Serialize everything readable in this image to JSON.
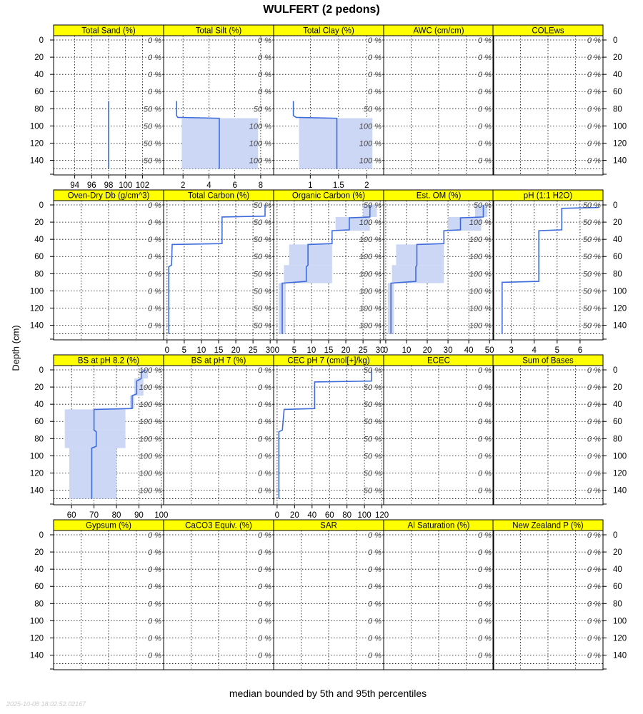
{
  "title": "WULFERT (2 pedons)",
  "ylabel": "Depth (cm)",
  "caption": "median bounded by 5th and 95th percentiles",
  "timestamp": "2025-10-08 18:02:52.02167",
  "colors": {
    "strip": "#ffff00",
    "line": "#3d6bd9",
    "band": "#ccd6f5",
    "frame": "#000000"
  },
  "chart_data": {
    "type": "line",
    "depth_ticks": [
      0,
      20,
      40,
      60,
      80,
      100,
      120,
      140
    ],
    "ylim": [
      -5,
      157
    ],
    "panels": [
      {
        "label": "Total Sand (%)",
        "pct": [
          "0 %",
          "0 %",
          "0 %",
          "0 %",
          "50 %",
          "50 %",
          "50 %",
          "50 %"
        ],
        "xlim": [
          91.5,
          104.5
        ],
        "xticks": [
          94,
          96,
          98,
          100,
          102
        ],
        "median": [
          [
            98,
            71
          ],
          [
            98,
            150
          ]
        ]
      },
      {
        "label": "Total Silt (%)",
        "pct": [
          "0 %",
          "0 %",
          "0 %",
          "0 %",
          "50 %",
          "100 %",
          "100 %",
          "100 %"
        ],
        "xlim": [
          0.5,
          9.0
        ],
        "xticks": [
          2,
          4,
          6,
          8
        ],
        "median": [
          [
            1.5,
            71
          ],
          [
            1.5,
            88
          ],
          [
            1.6,
            90
          ],
          [
            4.8,
            91
          ],
          [
            4.8,
            150
          ]
        ],
        "band": [
          [
            1.9,
            91,
            7.8,
            150
          ]
        ]
      },
      {
        "label": "Total Clay (%)",
        "pct": [
          "0 %",
          "0 %",
          "0 %",
          "0 %",
          "50 %",
          "100 %",
          "100 %",
          "100 %"
        ],
        "xlim": [
          0.35,
          2.3
        ],
        "xticks": [
          1.0,
          1.5,
          2.0
        ],
        "median": [
          [
            0.7,
            71
          ],
          [
            0.7,
            88
          ],
          [
            0.75,
            90
          ],
          [
            1.47,
            91
          ],
          [
            1.47,
            150
          ]
        ],
        "band": [
          [
            0.8,
            91,
            2.1,
            150
          ]
        ]
      },
      {
        "label": "AWC (cm/cm)",
        "pct": [
          "0 %",
          "0 %",
          "0 %",
          "0 %",
          "0 %",
          "0 %",
          "0 %",
          "0 %"
        ]
      },
      {
        "label": "COLEws",
        "pct": [
          "0 %",
          "0 %",
          "0 %",
          "0 %",
          "0 %",
          "0 %",
          "0 %",
          "0 %"
        ]
      },
      {
        "label": "Oven-Dry Db (g/cm^3)",
        "pct": [
          "0 %",
          "0 %",
          "0 %",
          "0 %",
          "0 %",
          "0 %",
          "0 %",
          "0 %"
        ]
      },
      {
        "label": "Total Carbon (%)",
        "pct": [
          "50 %",
          "50 %",
          "50 %",
          "50 %",
          "50 %",
          "50 %",
          "50 %",
          "50 %"
        ],
        "xlim": [
          -1,
          31
        ],
        "xticks": [
          0,
          5,
          10,
          15,
          20,
          25,
          30
        ],
        "median": [
          [
            28.5,
            0
          ],
          [
            28.5,
            13
          ],
          [
            16,
            14
          ],
          [
            16,
            45
          ],
          [
            1.5,
            46
          ],
          [
            1.3,
            70
          ],
          [
            0.5,
            72
          ],
          [
            0.5,
            150
          ]
        ]
      },
      {
        "label": "Organic Carbon (%)",
        "pct": [
          "50 %",
          "100 %",
          "100 %",
          "100 %",
          "100 %",
          "100 %",
          "100 %",
          "100 %"
        ],
        "xlim": [
          -1,
          31
        ],
        "xticks": [
          0,
          5,
          10,
          15,
          20,
          25,
          30
        ],
        "median": [
          [
            27,
            0
          ],
          [
            27,
            14
          ],
          [
            21,
            15
          ],
          [
            21,
            29
          ],
          [
            16,
            30
          ],
          [
            16,
            45
          ],
          [
            9,
            46
          ],
          [
            9,
            70
          ],
          [
            8.5,
            72
          ],
          [
            8.5,
            89
          ],
          [
            1.5,
            91
          ],
          [
            1.5,
            150
          ]
        ],
        "band": [
          [
            25,
            0,
            29,
            14
          ],
          [
            17,
            14,
            27,
            30
          ],
          [
            16,
            30,
            16,
            45
          ],
          [
            3.5,
            46,
            16,
            70
          ],
          [
            2,
            70,
            16,
            91
          ],
          [
            0.5,
            91,
            2.5,
            150
          ]
        ]
      },
      {
        "label": "Est. OM (%)",
        "pct": [
          "50 %",
          "100 %",
          "100 %",
          "100 %",
          "100 %",
          "100 %",
          "100 %",
          "100 %"
        ],
        "xlim": [
          -1,
          52
        ],
        "xticks": [
          0,
          10,
          20,
          30,
          40,
          50
        ],
        "median": [
          [
            47,
            0
          ],
          [
            47,
            14
          ],
          [
            36,
            15
          ],
          [
            36,
            29
          ],
          [
            28,
            30
          ],
          [
            28,
            45
          ],
          [
            15,
            46
          ],
          [
            15,
            70
          ],
          [
            14.5,
            72
          ],
          [
            14.5,
            89
          ],
          [
            2.5,
            91
          ],
          [
            2.5,
            150
          ]
        ],
        "band": [
          [
            43,
            0,
            49,
            14
          ],
          [
            30,
            14,
            46,
            30
          ],
          [
            28,
            30,
            28,
            45
          ],
          [
            5,
            46,
            28,
            70
          ],
          [
            3,
            70,
            28,
            91
          ],
          [
            1,
            91,
            4,
            150
          ]
        ]
      },
      {
        "label": "pH (1:1 H2O)",
        "pct": [
          "50 %",
          "50 %",
          "50 %",
          "50 %",
          "50 %",
          "50 %",
          "50 %",
          "50 %"
        ],
        "xlim": [
          2.2,
          7.0
        ],
        "xticks": [
          3,
          4,
          5,
          6
        ],
        "median": [
          [
            6.8,
            3
          ],
          [
            5.2,
            4
          ],
          [
            5.2,
            29
          ],
          [
            4.2,
            30
          ],
          [
            4.2,
            89
          ],
          [
            2.6,
            90
          ],
          [
            2.6,
            150
          ]
        ]
      },
      {
        "label": "BS at pH 8.2 (%)",
        "pct": [
          "100 %",
          "100 %",
          "100 %",
          "100 %",
          "100 %",
          "100 %",
          "100 %",
          "100 %"
        ],
        "xlim": [
          52,
          101
        ],
        "xticks": [
          60,
          70,
          80,
          90,
          100
        ],
        "median": [
          [
            93,
            0
          ],
          [
            91,
            3
          ],
          [
            91,
            10
          ],
          [
            89,
            13
          ],
          [
            89,
            28
          ],
          [
            87,
            30
          ],
          [
            87,
            45
          ],
          [
            70,
            46
          ],
          [
            70,
            70
          ],
          [
            71,
            72
          ],
          [
            71,
            89
          ],
          [
            69,
            91
          ],
          [
            69,
            150
          ]
        ],
        "band": [
          [
            91,
            0,
            94,
            10
          ],
          [
            88,
            10,
            92,
            30
          ],
          [
            86,
            30,
            88,
            45
          ],
          [
            57,
            46,
            84,
            70
          ],
          [
            57,
            70,
            84,
            91
          ],
          [
            59,
            91,
            80,
            150
          ]
        ]
      },
      {
        "label": "BS at pH 7 (%)",
        "pct": [
          "0 %",
          "0 %",
          "0 %",
          "0 %",
          "0 %",
          "0 %",
          "0 %",
          "0 %"
        ]
      },
      {
        "label": "CEC pH 7 (cmol[+]/kg)",
        "pct": [
          "50 %",
          "50 %",
          "50 %",
          "50 %",
          "50 %",
          "50 %",
          "50 %",
          "50 %"
        ],
        "xlim": [
          -4,
          122
        ],
        "xticks": [
          0,
          20,
          40,
          60,
          80,
          100,
          120
        ],
        "median": [
          [
            108,
            0
          ],
          [
            108,
            13
          ],
          [
            43,
            14
          ],
          [
            43,
            45
          ],
          [
            8,
            46
          ],
          [
            6,
            70
          ],
          [
            2,
            72
          ],
          [
            2,
            150
          ]
        ]
      },
      {
        "label": "ECEC",
        "pct": [
          "0 %",
          "0 %",
          "0 %",
          "0 %",
          "0 %",
          "0 %",
          "0 %",
          "0 %"
        ]
      },
      {
        "label": "Sum of Bases",
        "pct": [
          "0 %",
          "0 %",
          "0 %",
          "0 %",
          "0 %",
          "0 %",
          "0 %",
          "0 %"
        ]
      },
      {
        "label": "Gypsum (%)",
        "pct": [
          "0 %",
          "0 %",
          "0 %",
          "0 %",
          "0 %",
          "0 %",
          "0 %",
          "0 %"
        ]
      },
      {
        "label": "CaCO3 Equiv. (%)",
        "pct": [
          "0 %",
          "0 %",
          "0 %",
          "0 %",
          "0 %",
          "0 %",
          "0 %",
          "0 %"
        ]
      },
      {
        "label": "SAR",
        "pct": [
          "0 %",
          "0 %",
          "0 %",
          "0 %",
          "0 %",
          "0 %",
          "0 %",
          "0 %"
        ]
      },
      {
        "label": "Al Saturation (%)",
        "pct": [
          "0 %",
          "0 %",
          "0 %",
          "0 %",
          "0 %",
          "0 %",
          "0 %",
          "0 %"
        ]
      },
      {
        "label": "New Zealand P (%)",
        "pct": [
          "0 %",
          "0 %",
          "0 %",
          "0 %",
          "0 %",
          "0 %",
          "0 %",
          "0 %"
        ]
      }
    ]
  }
}
